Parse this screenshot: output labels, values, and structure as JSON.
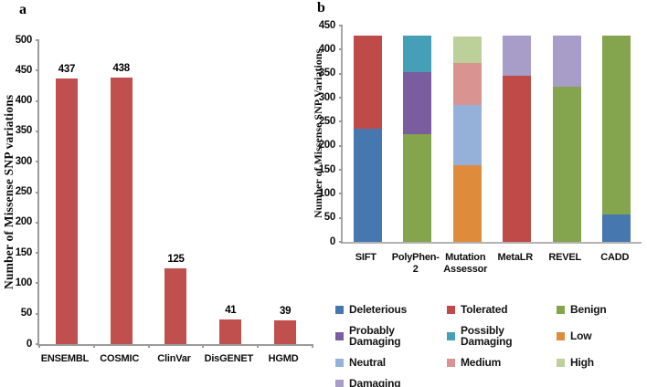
{
  "panels": {
    "a": {
      "label": "a"
    },
    "b": {
      "label": "b"
    }
  },
  "chart_data": [
    {
      "type": "bar",
      "panel": "a",
      "title": "",
      "ylabel": "Number of Missense SNP variations",
      "categories": [
        "ENSEMBL",
        "COSMIC",
        "ClinVar",
        "DisGENET",
        "HGMD"
      ],
      "values": [
        437,
        438,
        125,
        41,
        39
      ],
      "data_labels": [
        437,
        438,
        125,
        41,
        39
      ],
      "bar_color": "#BF504D",
      "ylim": [
        0,
        500
      ],
      "ytick_step": 50,
      "grid": false,
      "legend_position": "none"
    },
    {
      "type": "stacked-bar",
      "panel": "b",
      "title": "",
      "ylabel": "Number of Missense SNP Variations",
      "categories": [
        "SIFT",
        "PolyPhen-2",
        "Mutation Assessor",
        "MetaLR",
        "REVEL",
        "CADD"
      ],
      "ylim": [
        0,
        450
      ],
      "ytick_step": 50,
      "grid": false,
      "legend_position": "bottom",
      "series": [
        {
          "name": "Deleterious",
          "color": "#4677AE",
          "values": [
            235,
            0,
            0,
            0,
            0,
            57
          ]
        },
        {
          "name": "Tolerated",
          "color": "#BE4B48",
          "values": [
            194,
            0,
            0,
            345,
            0,
            0
          ]
        },
        {
          "name": "Benign",
          "color": "#84A44D",
          "values": [
            0,
            225,
            0,
            0,
            322,
            372
          ]
        },
        {
          "name": "Probably Damaging",
          "color": "#7A5D9E",
          "values": [
            0,
            128,
            0,
            0,
            0,
            0
          ]
        },
        {
          "name": "Possibly Damaging",
          "color": "#459FB6",
          "values": [
            0,
            76,
            0,
            0,
            0,
            0
          ]
        },
        {
          "name": "Low",
          "color": "#DE8C3C",
          "values": [
            0,
            0,
            160,
            0,
            0,
            0
          ]
        },
        {
          "name": "Neutral",
          "color": "#95B1DA",
          "values": [
            0,
            0,
            125,
            0,
            0,
            0
          ]
        },
        {
          "name": "Medium",
          "color": "#D99492",
          "values": [
            0,
            0,
            88,
            0,
            0,
            0
          ]
        },
        {
          "name": "High",
          "color": "#BCD199",
          "values": [
            0,
            0,
            55,
            0,
            0,
            0
          ]
        },
        {
          "name": "Damaging",
          "color": "#A89CC8",
          "values": [
            0,
            0,
            0,
            84,
            107,
            0
          ]
        }
      ]
    }
  ]
}
